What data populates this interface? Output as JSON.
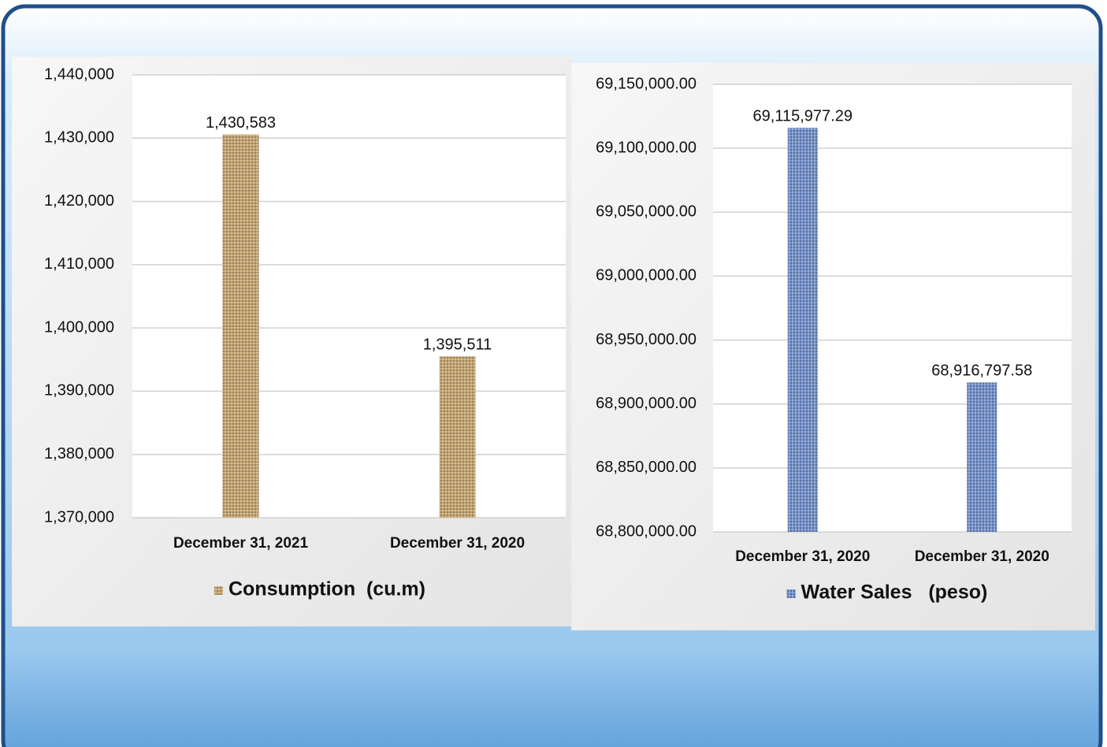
{
  "chart_data": [
    {
      "type": "bar",
      "categories": [
        "December 31, 2021",
        "December 31, 2020"
      ],
      "series": [
        {
          "name": "Consumption  (cu.m)",
          "color": "#c9a66b",
          "values": [
            1430583,
            1395511
          ],
          "value_labels": [
            "1,430,583",
            "1,395,511"
          ]
        }
      ],
      "ylim": [
        1370000,
        1440000
      ],
      "yticks": [
        {
          "value": 1370000,
          "label": "1,370,000"
        },
        {
          "value": 1380000,
          "label": "1,380,000"
        },
        {
          "value": 1390000,
          "label": "1,390,000"
        },
        {
          "value": 1400000,
          "label": "1,400,000"
        },
        {
          "value": 1410000,
          "label": "1,410,000"
        },
        {
          "value": 1420000,
          "label": "1,420,000"
        },
        {
          "value": 1430000,
          "label": "1,430,000"
        },
        {
          "value": 1440000,
          "label": "1,440,000"
        }
      ],
      "grid": true
    },
    {
      "type": "bar",
      "categories": [
        "December 31, 2020",
        "December 31, 2020"
      ],
      "series": [
        {
          "name": "Water Sales   (peso)",
          "color": "#6f8fd0",
          "values": [
            69115977.29,
            68916797.58
          ],
          "value_labels": [
            "69,115,977.29",
            "68,916,797.58"
          ]
        }
      ],
      "ylim": [
        68800000,
        69150000
      ],
      "yticks": [
        {
          "value": 68800000,
          "label": "68,800,000.00"
        },
        {
          "value": 68850000,
          "label": "68,850,000.00"
        },
        {
          "value": 68900000,
          "label": "68,900,000.00"
        },
        {
          "value": 68950000,
          "label": "68,950,000.00"
        },
        {
          "value": 69000000,
          "label": "69,000,000.00"
        },
        {
          "value": 69050000,
          "label": "69,050,000.00"
        },
        {
          "value": 69100000,
          "label": "69,100,000.00"
        },
        {
          "value": 69150000,
          "label": "69,150,000.00"
        }
      ],
      "grid": true
    }
  ]
}
